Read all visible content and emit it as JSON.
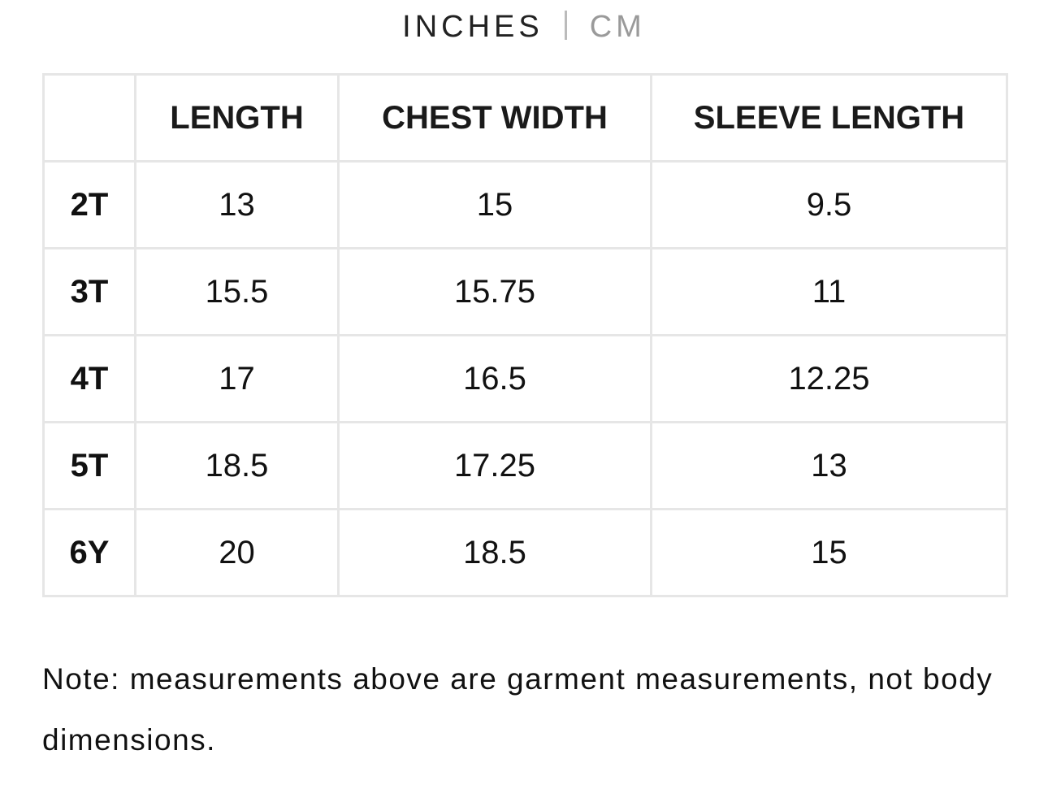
{
  "tabs": [
    "INCHES",
    "CM"
  ],
  "table": {
    "columns": [
      "LENGTH",
      "CHEST WIDTH",
      "SLEEVE LENGTH"
    ],
    "rows": [
      {
        "size": "2T",
        "values": [
          13,
          15,
          9.5
        ]
      },
      {
        "size": "3T",
        "values": [
          15.5,
          15.75,
          11
        ]
      },
      {
        "size": "4T",
        "values": [
          17,
          16.5,
          12.25
        ]
      },
      {
        "size": "5T",
        "values": [
          18.5,
          17.25,
          13
        ]
      },
      {
        "size": "6Y",
        "values": [
          20,
          18.5,
          15
        ]
      }
    ]
  },
  "note": "Note: measurements above are garment measurements, not body dimensions."
}
